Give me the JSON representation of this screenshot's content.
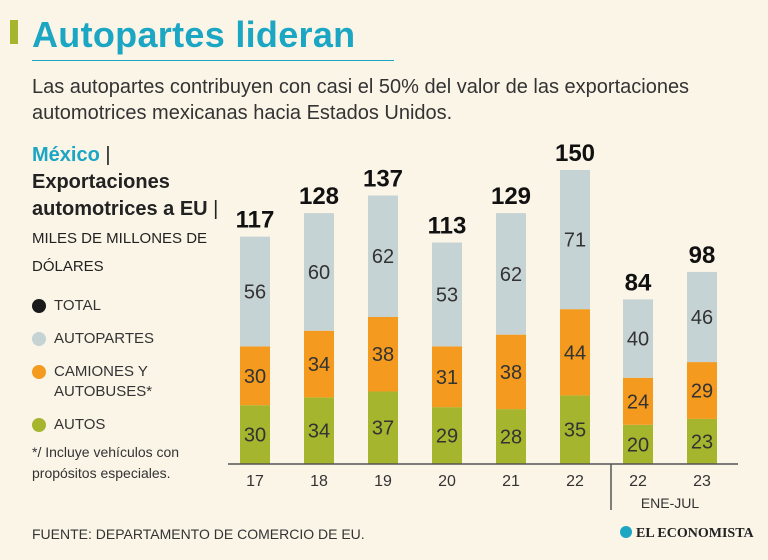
{
  "header": {
    "title": "Autopartes lideran",
    "subtitle": "Las autopartes contribuyen con casi el 50% del valor de las exportaciones automotrices mexicanas hacia Estados Unidos."
  },
  "heading": {
    "country": "México",
    "separator": " |",
    "title": "Exportaciones automotrices a EU",
    "units_separator": " |",
    "units": " MILES DE MILLONES DE DÓLARES"
  },
  "legend": [
    {
      "label": "TOTAL",
      "color": "#1a1a1a"
    },
    {
      "label": "AUTOPARTES",
      "color": "#c6d3d4"
    },
    {
      "label": "CAMIONES Y AUTOBUSES*",
      "color": "#f39a1f"
    },
    {
      "label": "AUTOS",
      "color": "#a5b52e"
    }
  ],
  "note": "*/ Incluye vehículos con propósitos especiales.",
  "source": "FUENTE: DEPARTAMENTO DE COMERCIO DE EU.",
  "logo": "EL ECONOMISTA",
  "chart_data": {
    "type": "bar",
    "stacked": true,
    "categories": [
      "17",
      "18",
      "19",
      "20",
      "21",
      "22",
      "22",
      "23"
    ],
    "category_group": {
      "label": "ENE-JUL",
      "categories_index": [
        6,
        7
      ]
    },
    "series": [
      {
        "name": "AUTOS",
        "color": "#a5b52e",
        "values": [
          30,
          34,
          37,
          29,
          28,
          35,
          20,
          23
        ]
      },
      {
        "name": "CAMIONES Y AUTOBUSES*",
        "color": "#f39a1f",
        "values": [
          30,
          34,
          38,
          31,
          38,
          44,
          24,
          29
        ]
      },
      {
        "name": "AUTOPARTES",
        "color": "#c6d3d4",
        "values": [
          56,
          60,
          62,
          53,
          62,
          71,
          40,
          46
        ]
      }
    ],
    "totals": [
      117,
      128,
      137,
      113,
      129,
      150,
      84,
      98
    ],
    "ylim": [
      0,
      150
    ]
  }
}
